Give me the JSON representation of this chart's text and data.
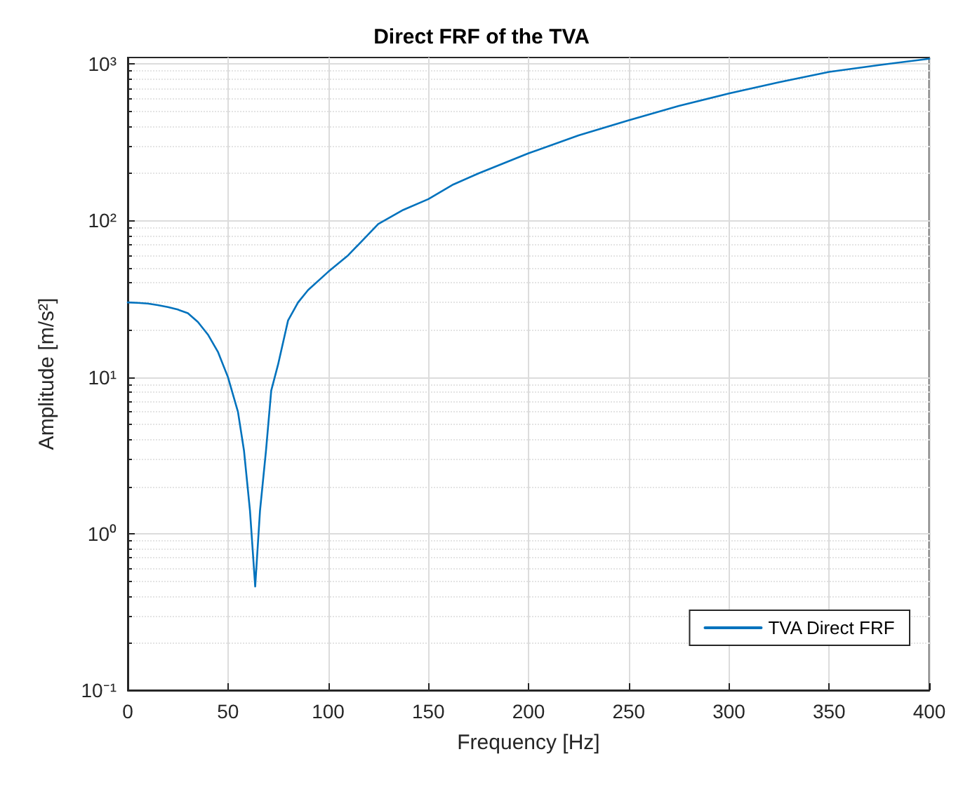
{
  "chart_data": {
    "type": "line",
    "title": "Direct FRF of the TVA",
    "xlabel": "Frequency [Hz]",
    "ylabel": "Amplitude [m/s²]",
    "x": [
      0,
      5,
      10,
      15,
      20,
      25,
      30,
      35,
      40,
      45,
      50,
      55,
      58,
      61,
      63.6,
      66,
      69,
      71.6,
      75,
      80,
      85,
      90,
      100,
      110,
      125,
      137.5,
      150,
      162.5,
      175,
      200,
      225,
      250,
      275,
      300,
      325,
      350,
      375,
      400
    ],
    "series": [
      {
        "name": "TVA Direct FRF",
        "color": "#0072bd",
        "values": [
          30,
          29.8,
          29.5,
          28.8,
          28,
          27,
          25.6,
          22.5,
          18.7,
          14.5,
          10,
          6,
          3.4,
          1.4,
          0.46,
          1.4,
          3.4,
          8.2,
          12,
          23,
          30,
          36,
          47,
          60,
          95,
          117,
          137,
          170,
          200,
          269,
          350,
          437,
          540,
          648,
          765,
          890,
          985,
          1080
        ]
      }
    ],
    "xlim": [
      0,
      400
    ],
    "xticks": [
      0,
      50,
      100,
      150,
      200,
      250,
      300,
      350,
      400
    ],
    "ylim": [
      0.1,
      1100
    ],
    "yticks": [
      {
        "value": 0.1,
        "label": "10⁻¹"
      },
      {
        "value": 1,
        "label": "10⁰"
      },
      {
        "value": 10,
        "label": "10¹"
      },
      {
        "value": 100,
        "label": "10²"
      },
      {
        "value": 1000,
        "label": "10³"
      }
    ],
    "log": "y",
    "grid": true,
    "legend": "bottom right",
    "marker": "none",
    "line_style": "solid"
  }
}
